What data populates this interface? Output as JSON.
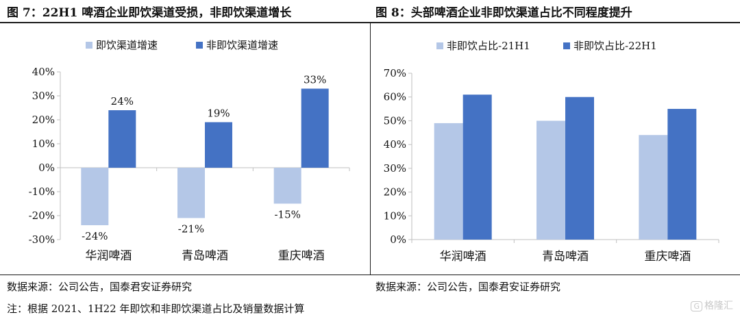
{
  "figure_left": {
    "title": "图 7：22H1 啤酒企业即饮渠道受损，非即饮渠道增长"
  },
  "figure_right": {
    "title": "图 8：头部啤酒企业非即饮渠道占比不同程度提升"
  },
  "source_left": "数据来源：公司公告，国泰君安证券研究",
  "source_right": "数据来源：公司公告，国泰君安证券研究",
  "note": "注：根据 2021、1H22 年即饮和非即饮渠道占比及销量数据计算",
  "watermark": "格隆汇",
  "colors": {
    "light": "#b4c7e7",
    "dark": "#4472c4",
    "axis": "#bfbfbf"
  },
  "chart_data": [
    {
      "type": "bar",
      "categories": [
        "华润啤酒",
        "青岛啤酒",
        "重庆啤酒"
      ],
      "series": [
        {
          "name": "即饮渠道增速",
          "values": [
            -24,
            -21,
            -15
          ],
          "labels": [
            "-24%",
            "-21%",
            "-15%"
          ]
        },
        {
          "name": "非即饮渠道增速",
          "values": [
            24,
            19,
            33
          ],
          "labels": [
            "24%",
            "19%",
            "33%"
          ]
        }
      ],
      "ylim": [
        -30,
        40
      ],
      "yticks": [
        "-30%",
        "-20%",
        "-10%",
        "0%",
        "10%",
        "20%",
        "30%",
        "40%"
      ],
      "legend": "top",
      "grid": false
    },
    {
      "type": "bar",
      "categories": [
        "华润啤酒",
        "青岛啤酒",
        "重庆啤酒"
      ],
      "series": [
        {
          "name": "非即饮占比-21H1",
          "values": [
            49,
            50,
            44
          ]
        },
        {
          "name": "非即饮占比-22H1",
          "values": [
            61,
            60,
            55
          ]
        }
      ],
      "ylim": [
        0,
        70
      ],
      "yticks": [
        "0%",
        "10%",
        "20%",
        "30%",
        "40%",
        "50%",
        "60%",
        "70%"
      ],
      "legend": "top",
      "grid": false
    }
  ]
}
